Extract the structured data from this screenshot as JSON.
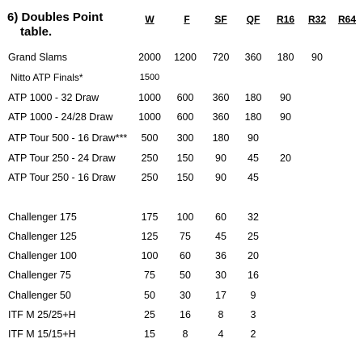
{
  "title_line1": "6) Doubles Point",
  "title_line2": "table.",
  "headers": [
    "W",
    "F",
    "SF",
    "QF",
    "R16",
    "R32",
    "R64"
  ],
  "rows": [
    {
      "name": "Grand Slams",
      "values": [
        "2000",
        "1200",
        "720",
        "360",
        "180",
        "90",
        ""
      ]
    },
    {
      "name": "Nitto ATP Finals*",
      "values": [
        "1500",
        "",
        "",
        "",
        "",
        "",
        ""
      ]
    },
    {
      "name": "ATP 1000 - 32 Draw",
      "values": [
        "1000",
        "600",
        "360",
        "180",
        "90",
        "",
        ""
      ]
    },
    {
      "name": "ATP 1000 - 24/28  Draw",
      "values": [
        "1000",
        "600",
        "360",
        "180",
        "90",
        "",
        ""
      ]
    },
    {
      "name": "ATP Tour 500 - 16 Draw***",
      "values": [
        "500",
        "300",
        "180",
        "90",
        "",
        "",
        ""
      ]
    },
    {
      "name": "ATP Tour 250 - 24 Draw",
      "values": [
        "250",
        "150",
        "90",
        "45",
        "20",
        "",
        ""
      ]
    },
    {
      "name": "ATP Tour 250 - 16 Draw",
      "values": [
        "250",
        "150",
        "90",
        "45",
        "",
        "",
        ""
      ]
    },
    {
      "name": "Challenger 175",
      "values": [
        "175",
        "100",
        "60",
        "32",
        "",
        "",
        ""
      ]
    },
    {
      "name": "Challenger 125",
      "values": [
        "125",
        "75",
        "45",
        "25",
        "",
        "",
        ""
      ]
    },
    {
      "name": "Challenger 100",
      "values": [
        "100",
        "60",
        "36",
        "20",
        "",
        "",
        ""
      ]
    },
    {
      "name": "Challenger 75",
      "values": [
        "75",
        "50",
        "30",
        "16",
        "",
        "",
        ""
      ]
    },
    {
      "name": "Challenger 50",
      "values": [
        "50",
        "30",
        "17",
        "9",
        "",
        "",
        ""
      ]
    },
    {
      "name": "ITF M 25/25+H",
      "values": [
        "25",
        "16",
        "8",
        "3",
        "",
        "",
        ""
      ]
    },
    {
      "name": "ITF M 15/15+H",
      "values": [
        "15",
        "8",
        "4",
        "2",
        "",
        "",
        ""
      ]
    }
  ]
}
